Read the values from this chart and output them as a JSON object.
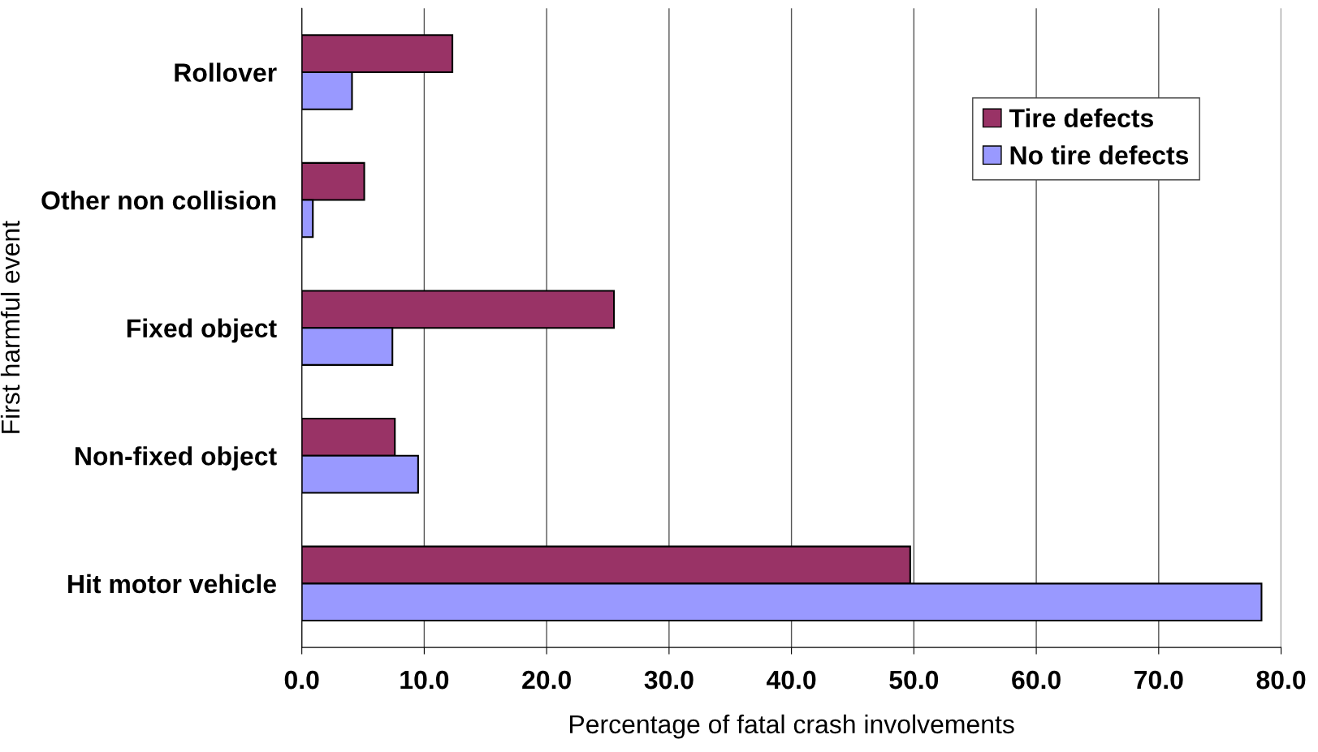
{
  "chart_data": {
    "type": "bar",
    "orientation": "horizontal",
    "xlabel": "Percentage of fatal crash involvements",
    "ylabel": "First harmful event",
    "categories": [
      "Rollover",
      "Other non collision",
      "Fixed object",
      "Non-fixed object",
      "Hit motor vehicle"
    ],
    "series": [
      {
        "name": "Tire defects",
        "color": "#993366",
        "values": [
          12.3,
          5.1,
          25.5,
          7.6,
          49.7
        ]
      },
      {
        "name": "No tire defects",
        "color": "#9999ff",
        "values": [
          4.1,
          0.9,
          7.4,
          9.5,
          78.4
        ]
      }
    ],
    "xlim": [
      0,
      80
    ],
    "xticks": [
      {
        "value": 0,
        "label": "0.0"
      },
      {
        "value": 10,
        "label": "10.0"
      },
      {
        "value": 20,
        "label": "20.0"
      },
      {
        "value": 30,
        "label": "30.0"
      },
      {
        "value": 40,
        "label": "40.0"
      },
      {
        "value": 50,
        "label": "50.0"
      },
      {
        "value": 60,
        "label": "60.0"
      },
      {
        "value": 70,
        "label": "70.0"
      },
      {
        "value": 80,
        "label": "80.0"
      }
    ],
    "grid": "x",
    "legend": "top right"
  }
}
